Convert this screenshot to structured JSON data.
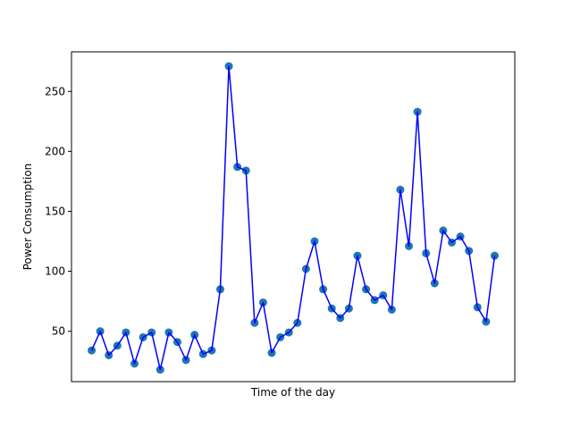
{
  "chart_data": {
    "type": "line",
    "xlabel": "Time of the day",
    "ylabel": "Power Consumption",
    "x_ticks_shown": false,
    "ylim": [
      8,
      283
    ],
    "yticks": [
      50,
      100,
      150,
      200,
      250
    ],
    "grid": false,
    "series": [
      {
        "markers": "scatter",
        "line_color": "#0000ff",
        "marker_color": "#1f77b4",
        "x": [
          0,
          1,
          2,
          3,
          4,
          5,
          6,
          7,
          8,
          9,
          10,
          11,
          12,
          13,
          14,
          15,
          16,
          17,
          18,
          19,
          20,
          21,
          22,
          23,
          24,
          25,
          26,
          27,
          28,
          29,
          30,
          31,
          32,
          33,
          34,
          35,
          36,
          37,
          38,
          39,
          40,
          41,
          42,
          43,
          44,
          45,
          46,
          47
        ],
        "values": [
          34,
          50,
          30,
          38,
          49,
          23,
          45,
          49,
          18,
          49,
          41,
          26,
          47,
          31,
          34,
          85,
          271,
          187,
          184,
          57,
          74,
          32,
          45,
          49,
          57,
          102,
          125,
          85,
          69,
          61,
          69,
          113,
          85,
          76,
          80,
          68,
          168,
          121,
          233,
          115,
          90,
          134,
          124,
          129,
          117,
          70,
          58,
          113
        ]
      }
    ]
  }
}
